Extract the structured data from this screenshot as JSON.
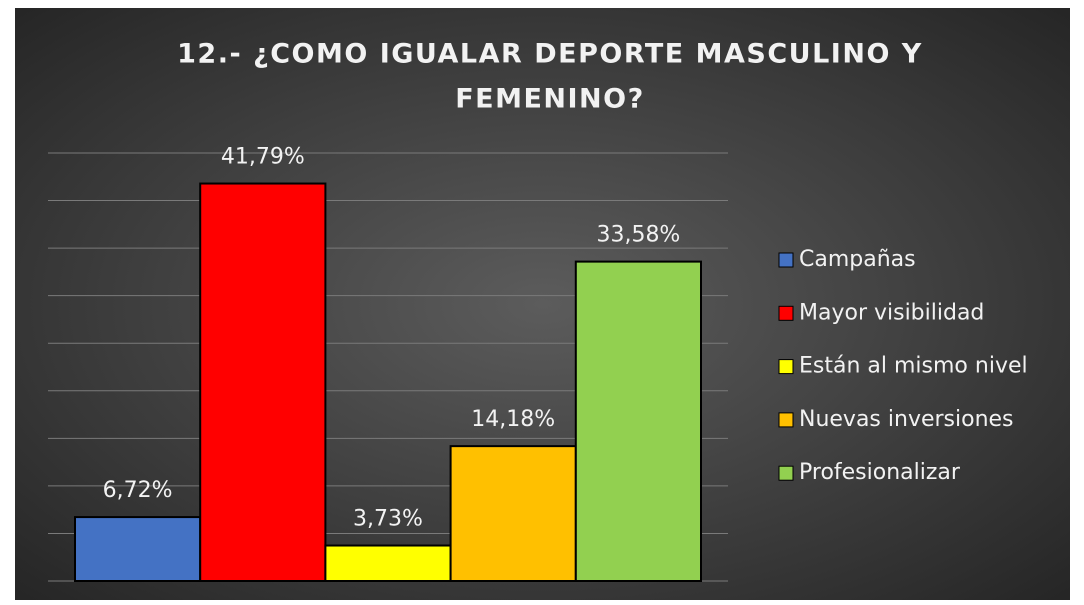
{
  "chart_data": {
    "type": "bar",
    "title_lines": [
      "12.- ¿COMO IGUALAR DEPORTE MASCULINO Y",
      "FEMENINO?"
    ],
    "categories": [
      "Campañas",
      "Mayor visibilidad",
      "Están al mismo nivel",
      "Nuevas inversiones",
      "Profesionalizar"
    ],
    "values": [
      6.72,
      41.79,
      3.73,
      14.18,
      33.58
    ],
    "value_labels": [
      "6,72%",
      "41,79%",
      "3,73%",
      "14,18%",
      "33,58%"
    ],
    "colors": [
      "#4472c4",
      "#ff0000",
      "#ffff00",
      "#ffc000",
      "#92d050"
    ],
    "ylim": [
      0,
      45
    ],
    "yticks": [
      0,
      5,
      10,
      15,
      20,
      25,
      30,
      35,
      40,
      45
    ],
    "grid": true,
    "legend": "right"
  }
}
